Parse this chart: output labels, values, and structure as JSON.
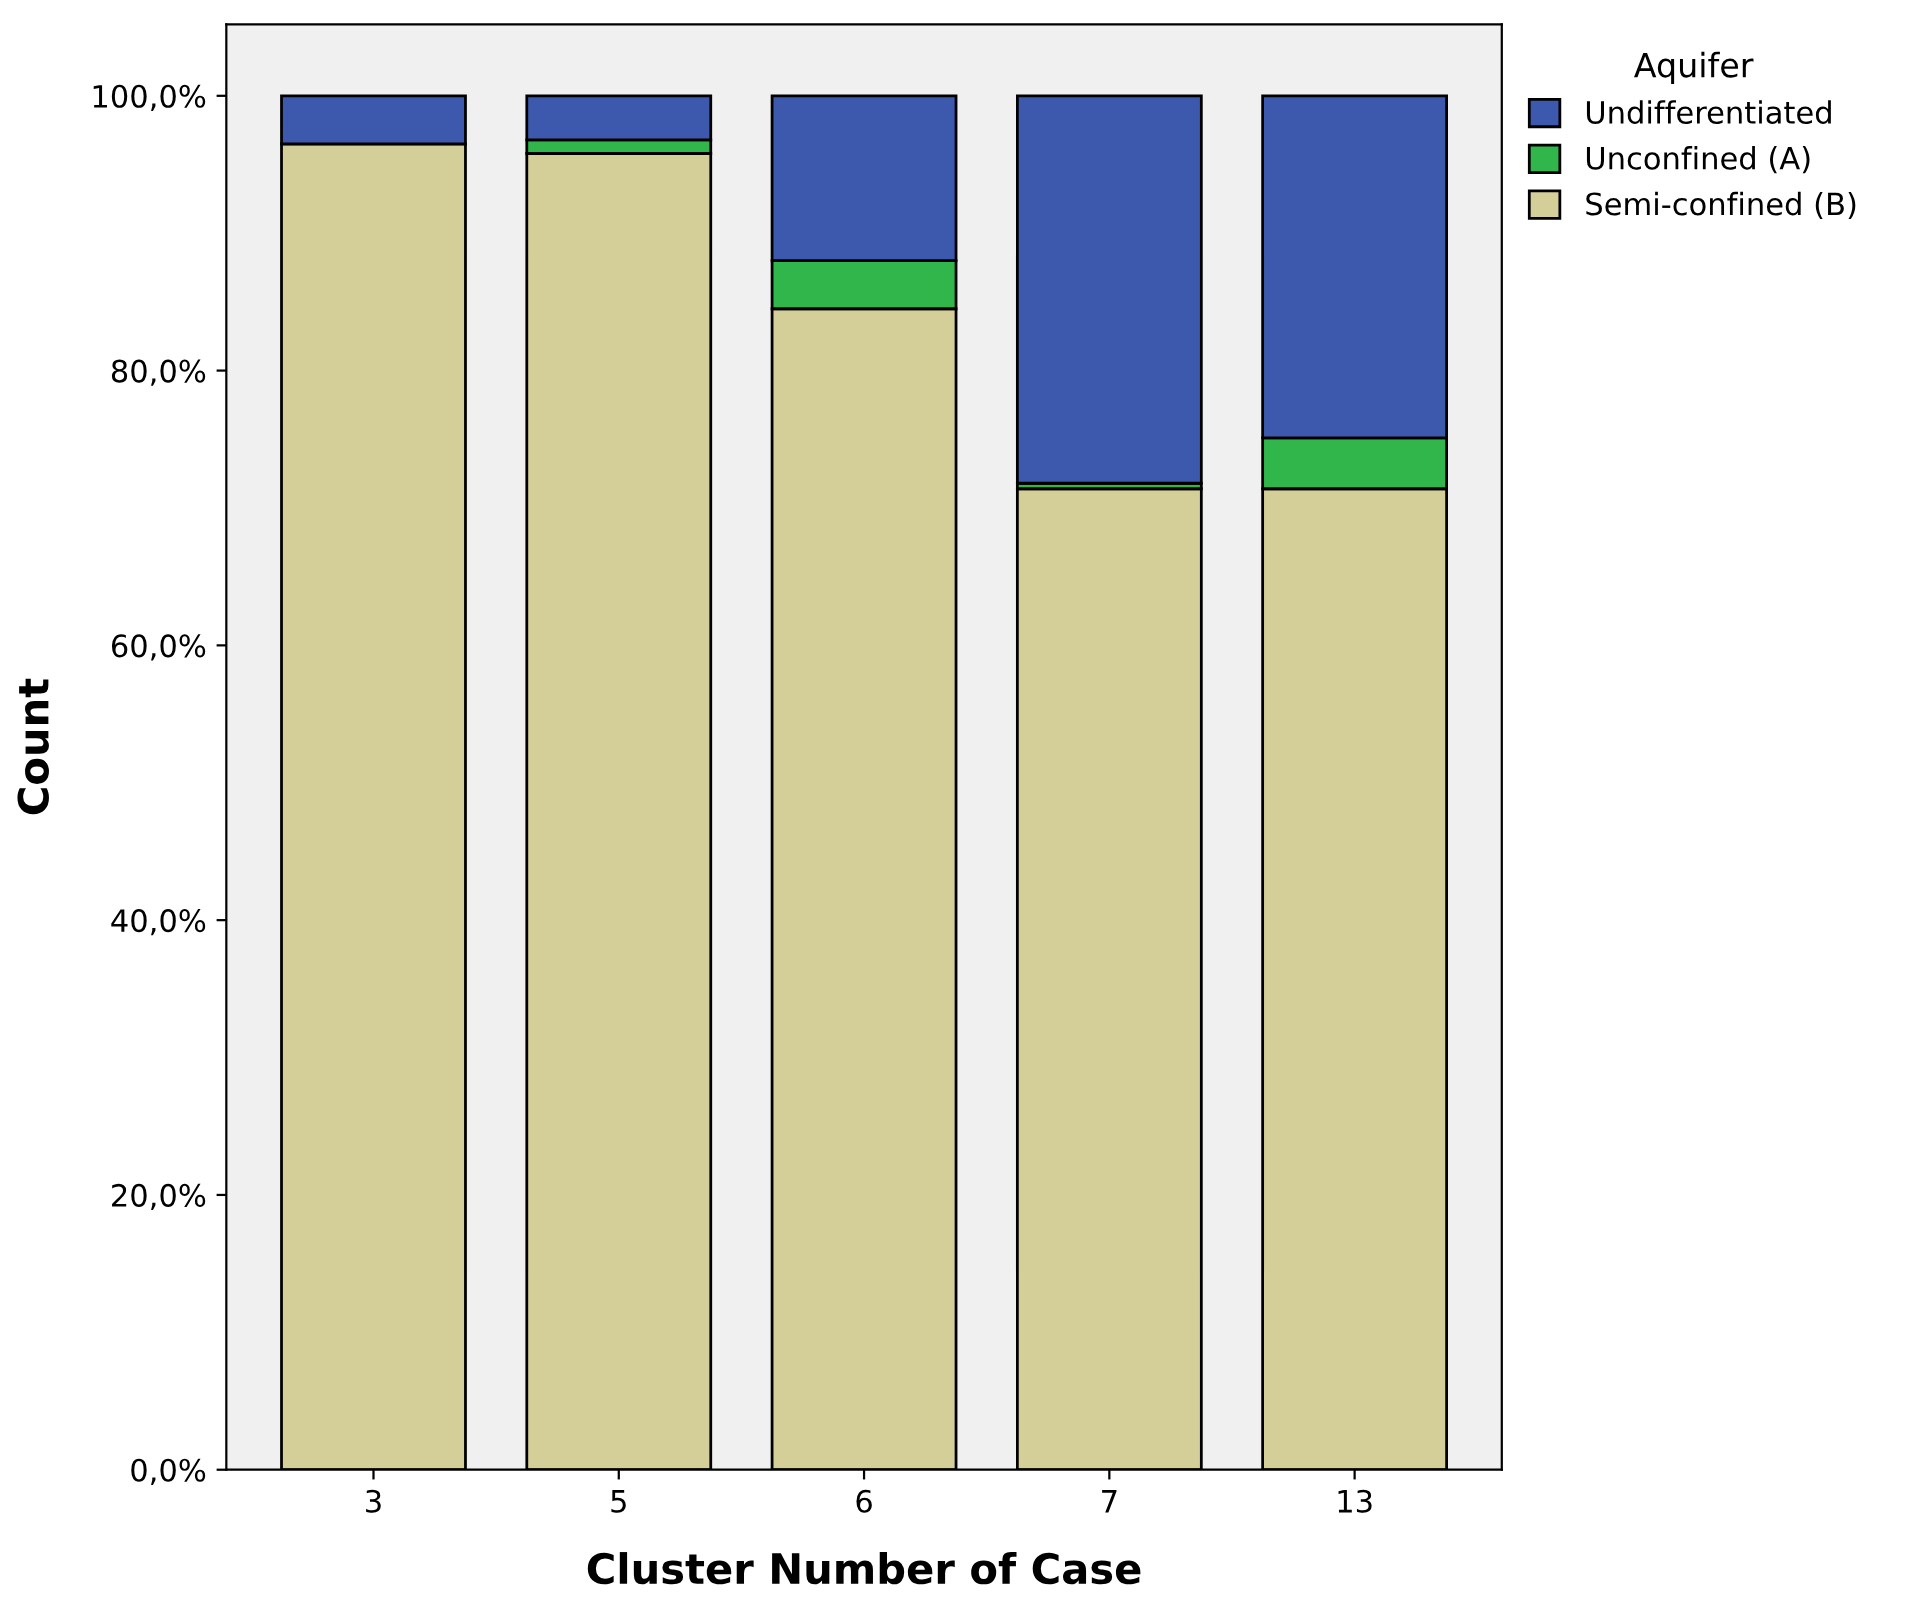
{
  "chart_data": {
    "type": "bar",
    "stacked": true,
    "xlabel": "Cluster Number of Case",
    "ylabel": "Count",
    "legend_title": "Aquifer",
    "legend": "top right",
    "categories": [
      "3",
      "5",
      "6",
      "7",
      "13"
    ],
    "series": [
      {
        "name": "Semi-confined (B)",
        "color": "#d4cf98",
        "values": [
          96.5,
          95.8,
          84.5,
          71.4,
          71.4
        ]
      },
      {
        "name": "Unconfined (A)",
        "color": "#30b64a",
        "values": [
          0,
          1.0,
          3.5,
          0.4,
          3.7
        ]
      },
      {
        "name": "Undifferentiated",
        "color": "#3d59ad",
        "values": [
          3.5,
          3.2,
          12.0,
          28.2,
          24.9
        ]
      }
    ],
    "ylim": [
      0,
      100
    ],
    "yticks": [
      {
        "value": 0,
        "label": "0,0%"
      },
      {
        "value": 20,
        "label": "20,0%"
      },
      {
        "value": 40,
        "label": "40,0%"
      },
      {
        "value": 60,
        "label": "60,0%"
      },
      {
        "value": 80,
        "label": "80,0%"
      },
      {
        "value": 100,
        "label": "100,0%"
      }
    ],
    "grid": false
  }
}
